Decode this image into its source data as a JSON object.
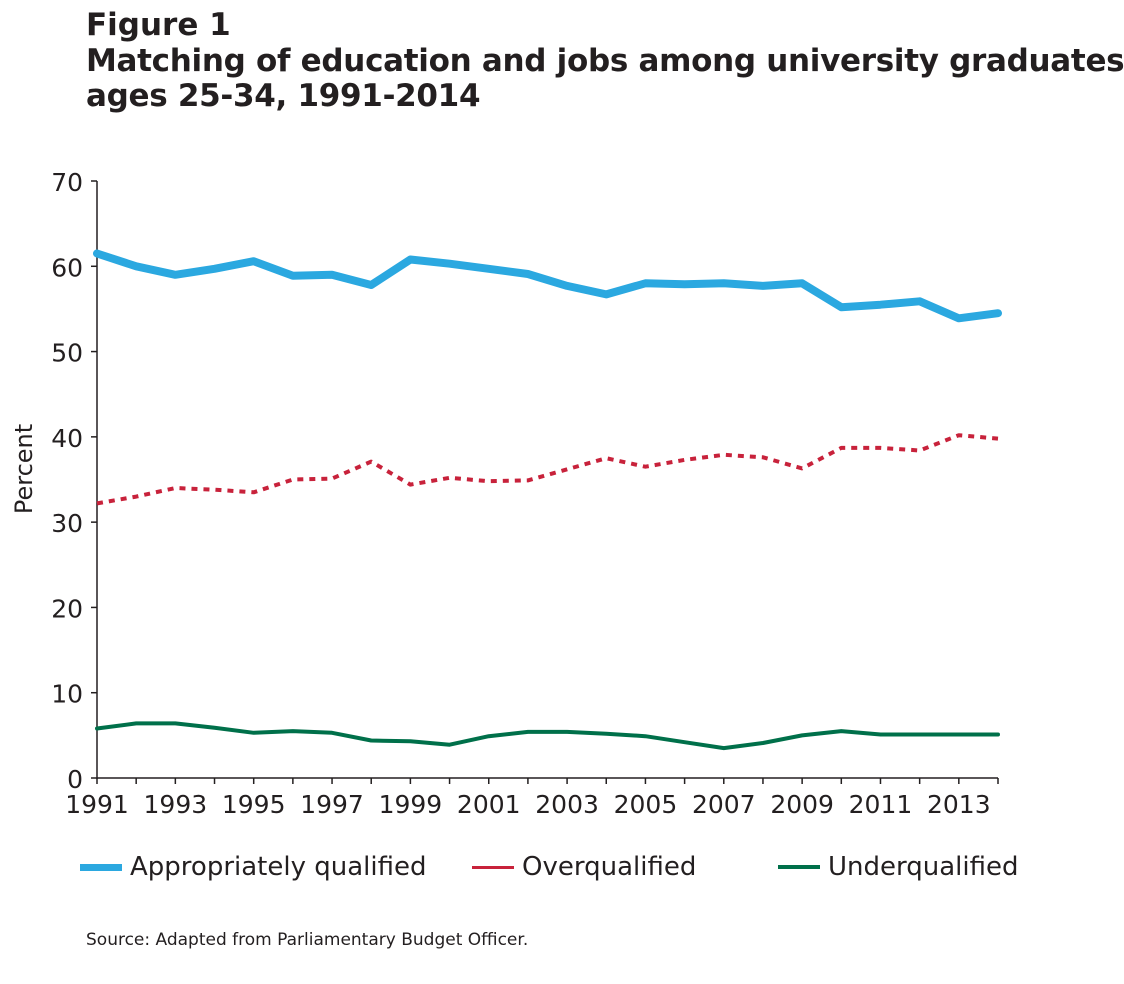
{
  "figure": {
    "label": "Figure 1",
    "title_line1": "Matching of education and jobs among university graduates",
    "title_line2": "ages 25-34, 1991-2014"
  },
  "source": "Source: Adapted from Parliamentary Budget Officer.",
  "chart_data": {
    "type": "line",
    "title": "Matching of education and jobs among university graduates ages 25-34, 1991-2014",
    "xlabel": "",
    "ylabel": "Percent",
    "xlim": [
      1991,
      2014
    ],
    "ylim": [
      0,
      70
    ],
    "x_ticks": [
      1991,
      1993,
      1995,
      1997,
      1999,
      2001,
      2003,
      2005,
      2007,
      2009,
      2011,
      2013
    ],
    "y_ticks": [
      0,
      10,
      20,
      30,
      40,
      50,
      60,
      70
    ],
    "grid": false,
    "legend_position": "bottom",
    "x": [
      1991,
      1992,
      1993,
      1994,
      1995,
      1996,
      1997,
      1998,
      1999,
      2000,
      2001,
      2002,
      2003,
      2004,
      2005,
      2006,
      2007,
      2008,
      2009,
      2010,
      2011,
      2012,
      2013,
      2014
    ],
    "series": [
      {
        "name": "Appropriately qualified",
        "color": "#2ba8e0",
        "style": "solid",
        "values": [
          61.5,
          60.0,
          59.0,
          59.7,
          60.6,
          58.9,
          59.0,
          57.8,
          60.8,
          60.3,
          59.7,
          59.1,
          57.7,
          56.7,
          58.0,
          57.9,
          58.0,
          57.7,
          58.0,
          55.2,
          55.5,
          55.9,
          53.9,
          54.5
        ]
      },
      {
        "name": "Overqualified",
        "color": "#c8223b",
        "style": "dotted",
        "values": [
          32.2,
          33.0,
          34.0,
          33.8,
          33.5,
          35.0,
          35.1,
          37.1,
          34.4,
          35.2,
          34.8,
          34.9,
          36.2,
          37.5,
          36.5,
          37.3,
          37.9,
          37.6,
          36.3,
          38.7,
          38.7,
          38.4,
          40.2,
          39.8
        ]
      },
      {
        "name": "Underqualified",
        "color": "#00704a",
        "style": "solid",
        "values": [
          5.8,
          6.4,
          6.4,
          5.9,
          5.3,
          5.5,
          5.3,
          4.4,
          4.3,
          3.9,
          4.9,
          5.4,
          5.4,
          5.2,
          4.9,
          4.2,
          3.5,
          4.1,
          5.0,
          5.5,
          5.1,
          5.1,
          5.1,
          5.1
        ]
      }
    ]
  }
}
